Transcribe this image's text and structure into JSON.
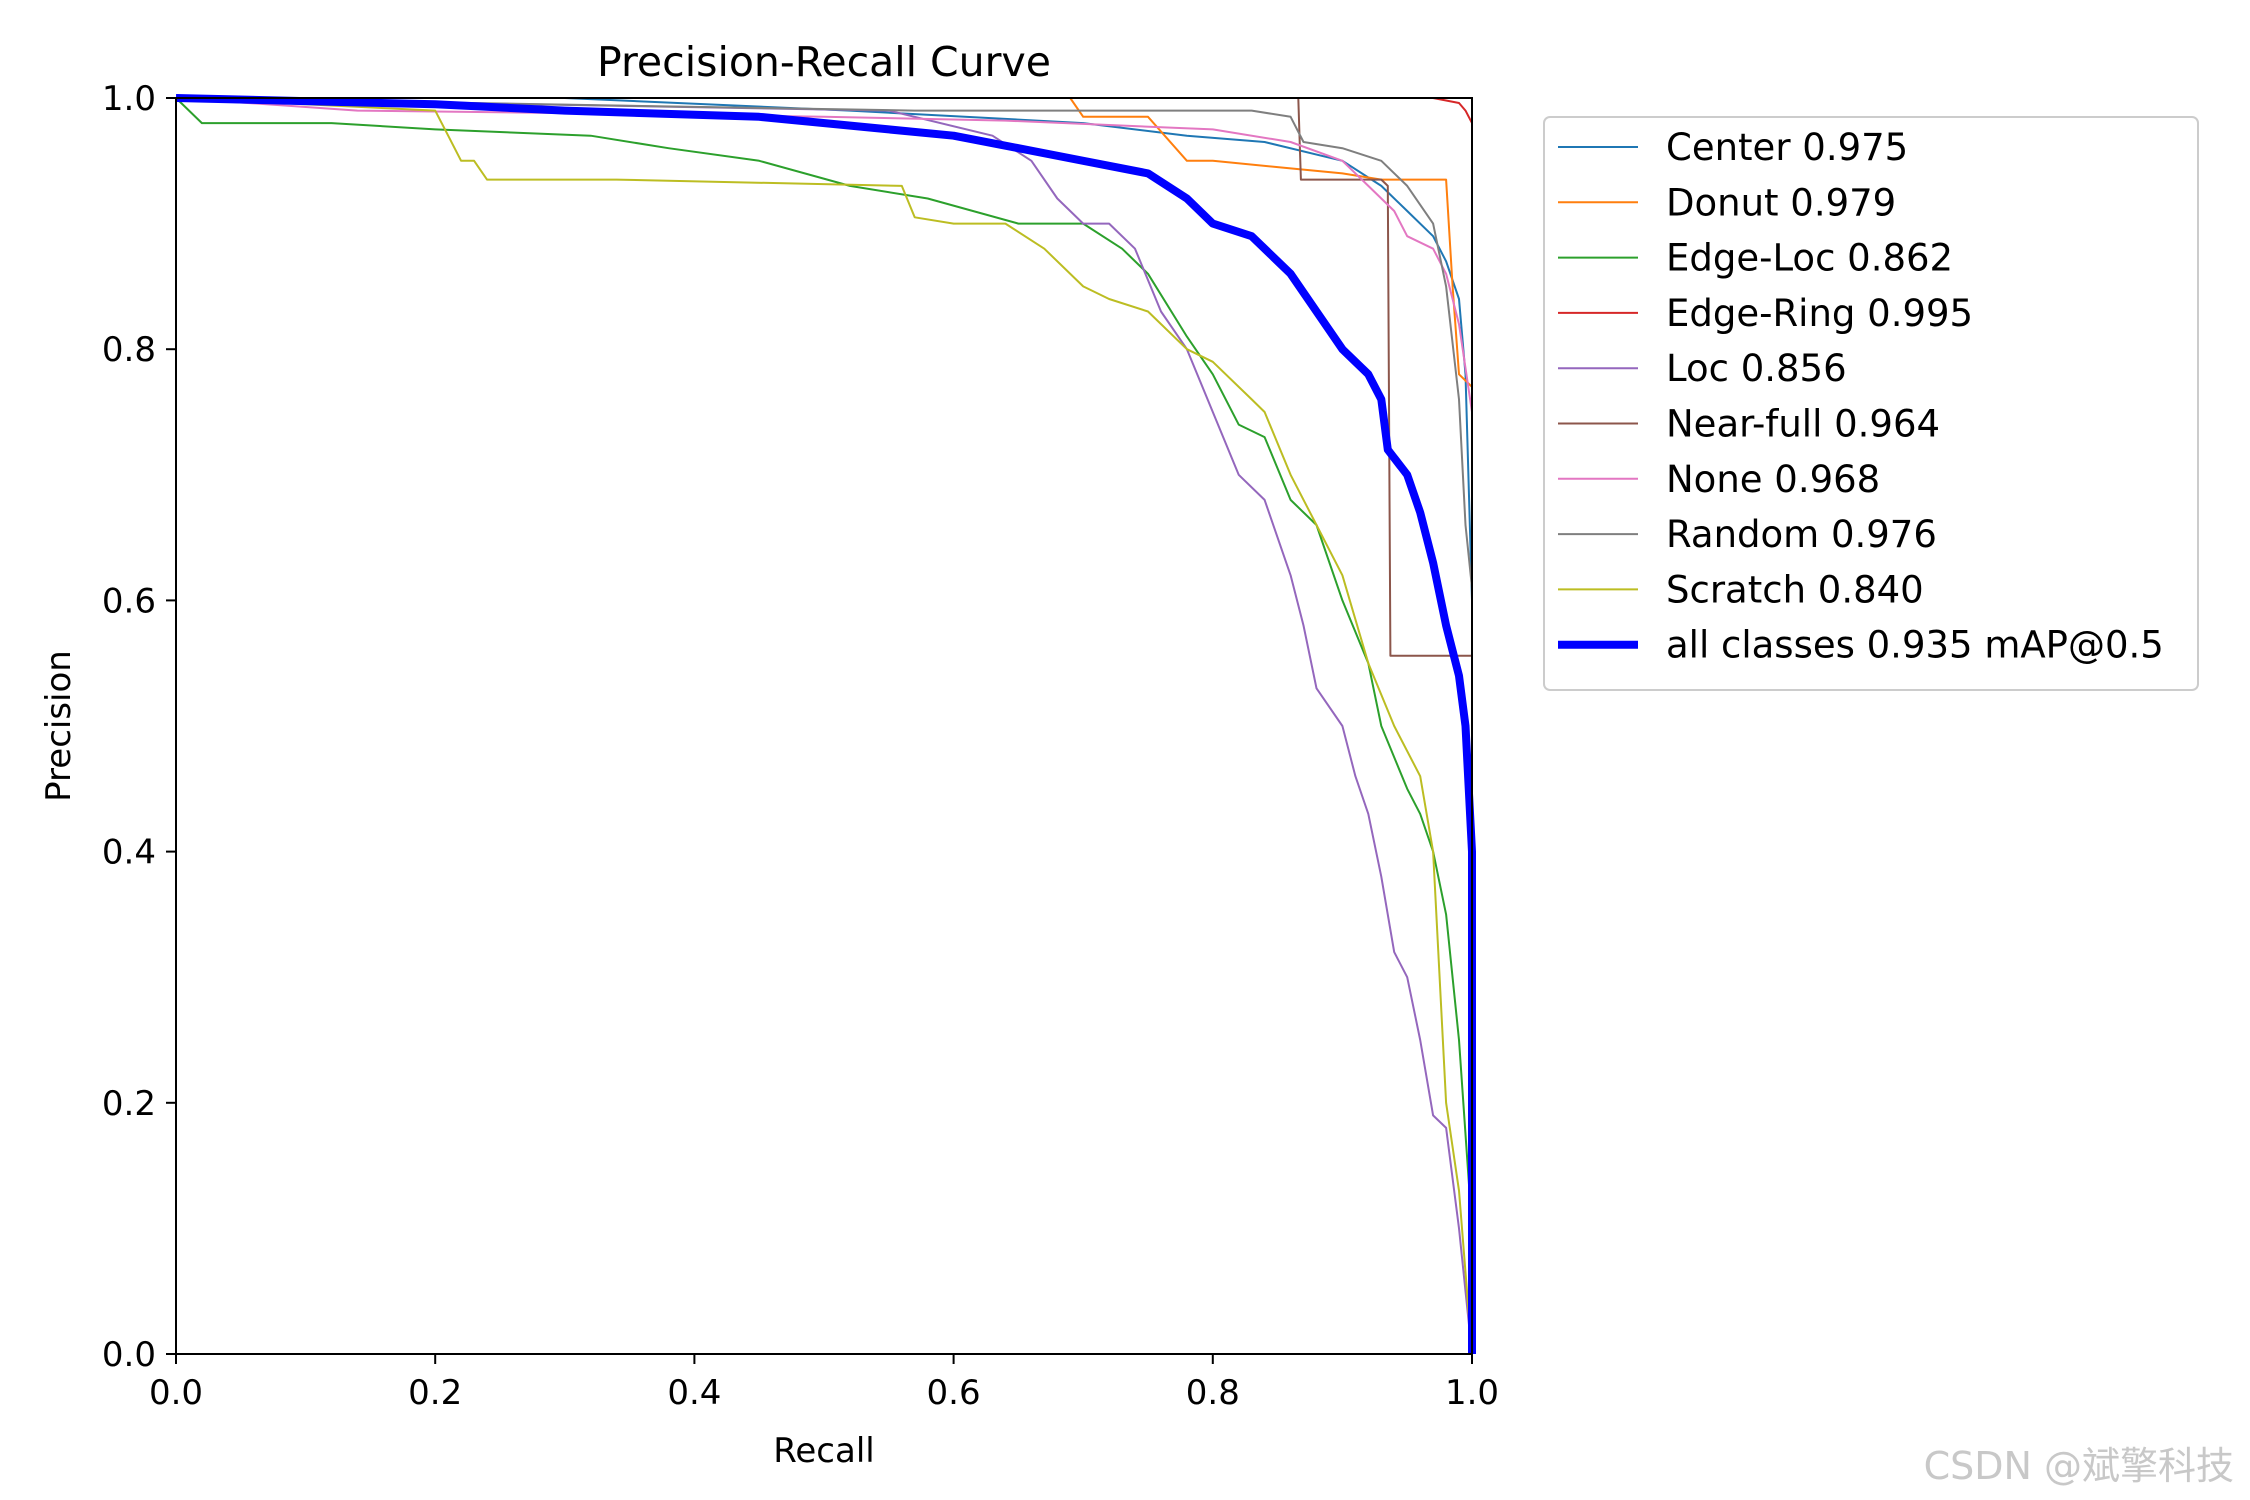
{
  "chart_data": {
    "type": "line",
    "title": "Precision-Recall Curve",
    "xlabel": "Recall",
    "ylabel": "Precision",
    "xlim": [
      0,
      1
    ],
    "ylim": [
      0,
      1
    ],
    "xticks": [
      "0.0",
      "0.2",
      "0.4",
      "0.6",
      "0.8",
      "1.0"
    ],
    "yticks": [
      "0.0",
      "0.2",
      "0.4",
      "0.6",
      "0.8",
      "1.0"
    ],
    "legend_position": "outside-right",
    "series": [
      {
        "name": "Center",
        "label": "Center 0.975",
        "color": "#1f77b4",
        "x": [
          0,
          0.3,
          0.52,
          0.7,
          0.78,
          0.84,
          0.9,
          0.93,
          0.95,
          0.97,
          0.98,
          0.99,
          0.995,
          1.0,
          1.0
        ],
        "y": [
          1.0,
          1.0,
          0.99,
          0.98,
          0.97,
          0.965,
          0.95,
          0.93,
          0.91,
          0.89,
          0.87,
          0.84,
          0.78,
          0.6,
          0.0
        ]
      },
      {
        "name": "Donut",
        "label": "Donut 0.979",
        "color": "#ff7f0e",
        "x": [
          0,
          0.69,
          0.7,
          0.75,
          0.78,
          0.8,
          0.85,
          0.9,
          0.93,
          0.97,
          0.98,
          0.985,
          0.99,
          1.0,
          1.0
        ],
        "y": [
          1.0,
          1.0,
          0.985,
          0.985,
          0.95,
          0.95,
          0.945,
          0.94,
          0.935,
          0.935,
          0.935,
          0.85,
          0.78,
          0.77,
          0.0
        ]
      },
      {
        "name": "Edge-Loc",
        "label": "Edge-Loc 0.862",
        "color": "#2ca02c",
        "x": [
          0,
          0.02,
          0.12,
          0.2,
          0.32,
          0.38,
          0.45,
          0.52,
          0.58,
          0.65,
          0.7,
          0.73,
          0.75,
          0.78,
          0.8,
          0.82,
          0.84,
          0.86,
          0.88,
          0.9,
          0.92,
          0.93,
          0.95,
          0.96,
          0.97,
          0.98,
          0.99,
          1.0,
          1.0
        ],
        "y": [
          1.0,
          0.98,
          0.98,
          0.975,
          0.97,
          0.96,
          0.95,
          0.93,
          0.92,
          0.9,
          0.9,
          0.88,
          0.86,
          0.81,
          0.78,
          0.74,
          0.73,
          0.68,
          0.66,
          0.6,
          0.55,
          0.5,
          0.45,
          0.43,
          0.4,
          0.35,
          0.25,
          0.1,
          0.0
        ]
      },
      {
        "name": "Edge-Ring",
        "label": "Edge-Ring 0.995",
        "color": "#d62728",
        "x": [
          0,
          0.97,
          0.98,
          0.99,
          0.995,
          1.0,
          1.0,
          1.0
        ],
        "y": [
          1.0,
          1.0,
          0.998,
          0.996,
          0.99,
          0.98,
          0.7,
          0.0
        ]
      },
      {
        "name": "Loc",
        "label": "Loc 0.856",
        "color": "#9467bd",
        "x": [
          0,
          0.55,
          0.63,
          0.66,
          0.68,
          0.7,
          0.72,
          0.74,
          0.76,
          0.78,
          0.8,
          0.82,
          0.84,
          0.86,
          0.87,
          0.88,
          0.9,
          0.91,
          0.92,
          0.93,
          0.94,
          0.95,
          0.96,
          0.97,
          0.98,
          0.99,
          1.0
        ],
        "y": [
          1.0,
          0.99,
          0.97,
          0.95,
          0.92,
          0.9,
          0.9,
          0.88,
          0.83,
          0.8,
          0.75,
          0.7,
          0.68,
          0.62,
          0.58,
          0.53,
          0.5,
          0.46,
          0.43,
          0.38,
          0.32,
          0.3,
          0.25,
          0.19,
          0.18,
          0.1,
          0.0
        ]
      },
      {
        "name": "Near-full",
        "label": "Near-full 0.964",
        "color": "#8c564b",
        "x": [
          0,
          0.866,
          0.868,
          0.92,
          0.93,
          0.935,
          0.937,
          0.98,
          0.985,
          1.0,
          1.0
        ],
        "y": [
          1.0,
          1.0,
          0.935,
          0.935,
          0.935,
          0.93,
          0.556,
          0.556,
          0.556,
          0.556,
          0.0
        ]
      },
      {
        "name": "None",
        "label": "None 0.968",
        "color": "#e377c2",
        "x": [
          0,
          0.14,
          0.3,
          0.5,
          0.64,
          0.8,
          0.86,
          0.9,
          0.92,
          0.94,
          0.95,
          0.97,
          0.98,
          0.99,
          1.0,
          1.0
        ],
        "y": [
          1.0,
          0.99,
          0.988,
          0.985,
          0.982,
          0.975,
          0.965,
          0.95,
          0.93,
          0.91,
          0.89,
          0.88,
          0.86,
          0.82,
          0.75,
          0.0
        ]
      },
      {
        "name": "Random",
        "label": "Random 0.976",
        "color": "#7f7f7f",
        "x": [
          0,
          0.57,
          0.78,
          0.83,
          0.86,
          0.87,
          0.9,
          0.93,
          0.95,
          0.97,
          0.98,
          0.99,
          0.995,
          1.0,
          1.0
        ],
        "y": [
          1.0,
          0.99,
          0.99,
          0.99,
          0.985,
          0.965,
          0.96,
          0.95,
          0.93,
          0.9,
          0.85,
          0.76,
          0.66,
          0.61,
          0.0
        ]
      },
      {
        "name": "Scratch",
        "label": "Scratch 0.840",
        "color": "#bcbd22",
        "x": [
          0,
          0.2,
          0.21,
          0.22,
          0.23,
          0.24,
          0.25,
          0.34,
          0.56,
          0.57,
          0.6,
          0.64,
          0.67,
          0.7,
          0.72,
          0.75,
          0.78,
          0.8,
          0.83,
          0.84,
          0.86,
          0.88,
          0.9,
          0.92,
          0.94,
          0.96,
          0.97,
          0.98,
          0.99,
          1.0
        ],
        "y": [
          1.0,
          0.99,
          0.97,
          0.95,
          0.95,
          0.935,
          0.935,
          0.935,
          0.93,
          0.905,
          0.9,
          0.9,
          0.88,
          0.85,
          0.84,
          0.83,
          0.8,
          0.79,
          0.76,
          0.75,
          0.7,
          0.66,
          0.62,
          0.55,
          0.5,
          0.46,
          0.4,
          0.2,
          0.13,
          0.0
        ]
      },
      {
        "name": "all classes",
        "label": "all classes 0.935 mAP@0.5",
        "color": "#0000ff",
        "bold": true,
        "x": [
          0,
          0.2,
          0.3,
          0.45,
          0.55,
          0.6,
          0.65,
          0.7,
          0.75,
          0.78,
          0.8,
          0.83,
          0.86,
          0.88,
          0.9,
          0.92,
          0.93,
          0.935,
          0.95,
          0.96,
          0.97,
          0.98,
          0.99,
          0.995,
          1.0,
          1.0
        ],
        "y": [
          1.0,
          0.995,
          0.99,
          0.985,
          0.975,
          0.97,
          0.96,
          0.95,
          0.94,
          0.92,
          0.9,
          0.89,
          0.86,
          0.83,
          0.8,
          0.78,
          0.76,
          0.72,
          0.7,
          0.67,
          0.63,
          0.58,
          0.54,
          0.5,
          0.4,
          0.0
        ]
      }
    ]
  },
  "watermark": "CSDN @斌擎科技"
}
